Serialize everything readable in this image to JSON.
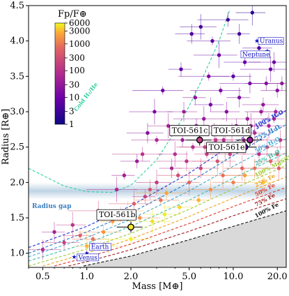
{
  "chart_data": {
    "type": "scatter",
    "xlabel": "Mass [M⊕]",
    "ylabel": "Radius [R⊕]",
    "xscale": "log",
    "xlim": [
      0.4,
      23
    ],
    "ylim": [
      0.8,
      4.5
    ],
    "xticks": [
      {
        "v": 0.5,
        "label": "0.5"
      },
      {
        "v": 1.0,
        "label": "1.0"
      },
      {
        "v": 2.0,
        "label": "2.0"
      },
      {
        "v": 5.0,
        "label": "5.0"
      },
      {
        "v": 10.0,
        "label": "10.0"
      },
      {
        "v": 20.0,
        "label": "20.0"
      }
    ],
    "yticks": [
      {
        "v": 1.0,
        "label": "1.0"
      },
      {
        "v": 1.5,
        "label": "1.5"
      },
      {
        "v": 2.0,
        "label": "2.0"
      },
      {
        "v": 2.5,
        "label": "2.5"
      },
      {
        "v": 3.0,
        "label": "3.0"
      },
      {
        "v": 3.5,
        "label": "3.5"
      },
      {
        "v": 4.0,
        "label": "4.0"
      },
      {
        "v": 4.5,
        "label": "4.5"
      }
    ],
    "colorbar": {
      "title": "Fp/F⊕",
      "scale": "log",
      "range": [
        1,
        6000
      ],
      "ticks": [
        {
          "v": 6000,
          "label": "6000"
        },
        {
          "v": 3000,
          "label": "3000"
        },
        {
          "v": 1000,
          "label": "1000"
        },
        {
          "v": 300,
          "label": "300"
        },
        {
          "v": 100,
          "label": "100"
        },
        {
          "v": 30,
          "label": "30"
        },
        {
          "v": 10,
          "label": "10"
        },
        {
          "v": 3,
          "label": "3"
        },
        {
          "v": 1,
          "label": "1"
        }
      ]
    },
    "radius_gap": {
      "label": "Radius gap",
      "center": 1.88,
      "half_width": 0.12
    },
    "composition_curves": [
      {
        "label": "Cold H₂/He",
        "color": "#2fcfa0",
        "style": "dashed",
        "points": [
          [
            0.4,
            2.2
          ],
          [
            0.7,
            1.95
          ],
          [
            1.0,
            1.87
          ],
          [
            1.5,
            1.86
          ],
          [
            2.0,
            1.96
          ],
          [
            3.0,
            2.32
          ],
          [
            4.0,
            2.72
          ],
          [
            5.0,
            3.08
          ],
          [
            6.0,
            3.42
          ],
          [
            8.0,
            4.0
          ],
          [
            9.5,
            4.45
          ]
        ]
      },
      {
        "label": "100% H₂O",
        "color": "#1a2fd0",
        "style": "dashed",
        "points": [
          [
            0.4,
            1.08
          ],
          [
            1.0,
            1.38
          ],
          [
            2.0,
            1.67
          ],
          [
            5.0,
            2.13
          ],
          [
            10.0,
            2.55
          ],
          [
            23.0,
            3.02
          ]
        ]
      },
      {
        "label": "75% H₂O",
        "color": "#1f78c8",
        "style": "dashed",
        "points": [
          [
            0.4,
            1.0
          ],
          [
            1.0,
            1.3
          ],
          [
            2.0,
            1.57
          ],
          [
            5.0,
            2.0
          ],
          [
            10.0,
            2.38
          ],
          [
            23.0,
            2.82
          ]
        ]
      },
      {
        "label": "50% H₂O",
        "color": "#3fa9d8",
        "style": "dashed",
        "points": [
          [
            0.4,
            0.95
          ],
          [
            1.0,
            1.22
          ],
          [
            2.0,
            1.48
          ],
          [
            5.0,
            1.88
          ],
          [
            10.0,
            2.23
          ],
          [
            23.0,
            2.62
          ]
        ]
      },
      {
        "label": "25% H₂O",
        "color": "#38c0a8",
        "style": "dashed",
        "points": [
          [
            0.4,
            0.89
          ],
          [
            1.0,
            1.14
          ],
          [
            2.0,
            1.38
          ],
          [
            5.0,
            1.75
          ],
          [
            10.0,
            2.06
          ],
          [
            23.0,
            2.42
          ]
        ]
      },
      {
        "label": "100% MgSiO₃",
        "color": "#9acd32",
        "style": "dashed",
        "points": [
          [
            0.4,
            0.82
          ],
          [
            1.0,
            1.06
          ],
          [
            2.0,
            1.28
          ],
          [
            5.0,
            1.62
          ],
          [
            10.0,
            1.91
          ],
          [
            23.0,
            2.24
          ]
        ]
      },
      {
        "label": "25% Fe",
        "color": "#f0a020",
        "style": "dashed",
        "points": [
          [
            0.5,
            0.82
          ],
          [
            1.0,
            1.0
          ],
          [
            2.0,
            1.2
          ],
          [
            5.0,
            1.52
          ],
          [
            10.0,
            1.78
          ],
          [
            23.0,
            2.08
          ]
        ]
      },
      {
        "label": "50% Fe",
        "color": "#e03a2a",
        "style": "dashed",
        "points": [
          [
            0.6,
            0.82
          ],
          [
            1.0,
            0.94
          ],
          [
            2.0,
            1.13
          ],
          [
            5.0,
            1.42
          ],
          [
            10.0,
            1.66
          ],
          [
            23.0,
            1.93
          ]
        ]
      },
      {
        "label": "75% Fe",
        "color": "#a01818",
        "style": "dashed",
        "points": [
          [
            0.75,
            0.82
          ],
          [
            1.0,
            0.88
          ],
          [
            2.0,
            1.05
          ],
          [
            5.0,
            1.31
          ],
          [
            10.0,
            1.53
          ],
          [
            23.0,
            1.77
          ]
        ]
      },
      {
        "label": "100% Fe",
        "color": "#111111",
        "style": "dashed",
        "points": [
          [
            0.95,
            0.82
          ],
          [
            2.0,
            0.96
          ],
          [
            5.0,
            1.19
          ],
          [
            10.0,
            1.38
          ],
          [
            23.0,
            1.6
          ]
        ]
      }
    ],
    "highlighted_planets": [
      {
        "name": "TOI-561b",
        "mass": 2.0,
        "radius": 1.37,
        "flux": 5000
      },
      {
        "name": "TOI-561c",
        "mass": 5.9,
        "radius": 2.6,
        "flux": 150
      },
      {
        "name": "TOI-561d",
        "mass": 13.0,
        "radius": 2.6,
        "flux": 40
      },
      {
        "name": "TOI-561e",
        "mass": 12.0,
        "radius": 2.5,
        "flux": 10
      }
    ],
    "solar_system": [
      {
        "name": "Uranus",
        "mass": 14.5,
        "radius": 4.0
      },
      {
        "name": "Neptune",
        "mass": 17.1,
        "radius": 3.86
      },
      {
        "name": "Earth",
        "mass": 1.0,
        "radius": 1.0
      },
      {
        "name": "Venus",
        "mass": 0.82,
        "radius": 0.95
      }
    ],
    "scatter_points": [
      [
        1.5,
        1.45,
        2000
      ],
      [
        1.7,
        1.55,
        800
      ],
      [
        1.9,
        1.6,
        3000
      ],
      [
        2.1,
        1.7,
        500
      ],
      [
        2.3,
        1.5,
        1500
      ],
      [
        2.5,
        1.8,
        200
      ],
      [
        2.7,
        1.9,
        400
      ],
      [
        3.0,
        2.0,
        150
      ],
      [
        3.2,
        1.75,
        900
      ],
      [
        3.5,
        1.85,
        2500
      ],
      [
        3.8,
        2.2,
        60
      ],
      [
        4.0,
        2.4,
        90
      ],
      [
        4.2,
        2.1,
        300
      ],
      [
        4.5,
        2.6,
        40
      ],
      [
        4.8,
        2.3,
        120
      ],
      [
        5.0,
        2.0,
        700
      ],
      [
        5.3,
        2.5,
        80
      ],
      [
        5.6,
        2.8,
        25
      ],
      [
        6.0,
        2.2,
        200
      ],
      [
        6.3,
        2.9,
        30
      ],
      [
        6.6,
        2.4,
        150
      ],
      [
        7.0,
        3.1,
        12
      ],
      [
        7.4,
        2.7,
        55
      ],
      [
        7.8,
        2.3,
        350
      ],
      [
        8.2,
        3.3,
        15
      ],
      [
        8.6,
        2.6,
        70
      ],
      [
        9.0,
        3.0,
        20
      ],
      [
        9.5,
        2.4,
        180
      ],
      [
        10.0,
        3.5,
        6
      ],
      [
        10.5,
        2.8,
        35
      ],
      [
        11.0,
        3.2,
        18
      ],
      [
        11.5,
        2.2,
        500
      ],
      [
        12.0,
        3.7,
        8
      ],
      [
        12.5,
        2.9,
        45
      ],
      [
        13.0,
        3.4,
        14
      ],
      [
        14.0,
        2.7,
        90
      ],
      [
        15.0,
        3.9,
        5
      ],
      [
        16.0,
        3.1,
        30
      ],
      [
        17.0,
        2.5,
        250
      ],
      [
        18.0,
        3.6,
        10
      ],
      [
        19.0,
        2.9,
        60
      ],
      [
        20.0,
        3.3,
        22
      ],
      [
        21.0,
        2.6,
        140
      ],
      [
        8.0,
        3.8,
        9
      ],
      [
        6.8,
        3.5,
        16
      ],
      [
        5.5,
        3.2,
        28
      ],
      [
        4.6,
        3.0,
        40
      ],
      [
        3.6,
        2.8,
        55
      ],
      [
        3.0,
        2.6,
        65
      ],
      [
        2.4,
        2.4,
        100
      ],
      [
        0.6,
        1.3,
        50
      ],
      [
        0.8,
        1.4,
        120
      ],
      [
        1.1,
        1.2,
        900
      ],
      [
        1.3,
        1.3,
        1800
      ],
      [
        1.2,
        1.6,
        300
      ],
      [
        1.0,
        1.1,
        3000
      ],
      [
        0.9,
        1.25,
        600
      ],
      [
        0.7,
        1.15,
        200
      ],
      [
        0.5,
        1.05,
        80
      ],
      [
        1.6,
        1.9,
        70
      ],
      [
        1.8,
        2.1,
        45
      ],
      [
        2.2,
        2.3,
        35
      ],
      [
        2.6,
        2.7,
        20
      ],
      [
        2.9,
        3.0,
        15
      ],
      [
        3.3,
        3.3,
        10
      ],
      [
        4.4,
        3.6,
        7
      ],
      [
        5.2,
        4.1,
        5
      ],
      [
        6.0,
        4.2,
        4
      ],
      [
        7.2,
        4.0,
        6
      ],
      [
        9.2,
        4.3,
        3
      ],
      [
        11.0,
        4.1,
        4
      ],
      [
        13.5,
        4.4,
        2
      ],
      [
        10.0,
        2.0,
        1200
      ],
      [
        12.0,
        2.1,
        2200
      ],
      [
        14.0,
        2.2,
        1000
      ],
      [
        16.0,
        2.0,
        3500
      ],
      [
        18.0,
        2.3,
        700
      ],
      [
        20.0,
        2.4,
        400
      ],
      [
        7.0,
        1.9,
        1600
      ],
      [
        8.5,
        2.1,
        850
      ],
      [
        5.8,
        1.75,
        2800
      ],
      [
        4.3,
        1.65,
        4000
      ],
      [
        3.4,
        1.55,
        5000
      ],
      [
        2.8,
        1.45,
        4500
      ],
      [
        2.0,
        1.2,
        5500
      ],
      [
        1.4,
        1.1,
        4200
      ],
      [
        15.0,
        2.4,
        110
      ],
      [
        17.5,
        2.8,
        75
      ],
      [
        19.5,
        3.0,
        50
      ],
      [
        21.5,
        3.4,
        28
      ],
      [
        9.8,
        2.7,
        130
      ],
      [
        8.8,
        2.5,
        260
      ],
      [
        7.6,
        2.6,
        160
      ],
      [
        6.4,
        2.5,
        240
      ],
      [
        11.8,
        2.6,
        95
      ],
      [
        13.2,
        2.8,
        48
      ],
      [
        15.5,
        3.0,
        36
      ],
      [
        16.8,
        3.4,
        19
      ],
      [
        19.0,
        3.7,
        11
      ],
      [
        20.5,
        2.2,
        600
      ]
    ]
  }
}
